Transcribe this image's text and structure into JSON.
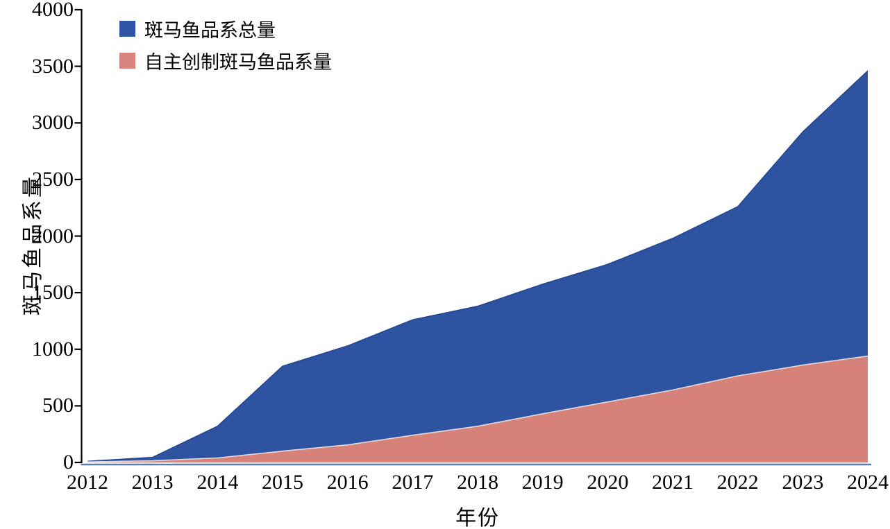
{
  "figure": {
    "y_axis_title": "斑马鱼品系量",
    "x_axis_title": "年份"
  },
  "legend": {
    "position": "top-left",
    "items": [
      {
        "label": "斑马鱼品系总量",
        "color": "#2f55a4"
      },
      {
        "label": "自主创制斑马鱼品系量",
        "color": "#d9837e"
      }
    ]
  },
  "chart_data": {
    "type": "area",
    "title": "",
    "xlabel": "年份",
    "ylabel": "斑马鱼品系量",
    "categories": [
      "2012",
      "2013",
      "2014",
      "2015",
      "2016",
      "2017",
      "2018",
      "2019",
      "2020",
      "2021",
      "2022",
      "2023",
      "2024"
    ],
    "series": [
      {
        "name": "斑马鱼品系总量",
        "fill": "#2e54a1",
        "edge": "#24468c",
        "values": [
          10,
          45,
          320,
          850,
          1030,
          1260,
          1380,
          1575,
          1750,
          1980,
          2260,
          2920,
          3460
        ]
      },
      {
        "name": "自主创制斑马鱼品系量",
        "fill": "#d6817a",
        "edge": "#e0dce2",
        "values": [
          5,
          15,
          40,
          100,
          155,
          240,
          320,
          430,
          535,
          640,
          765,
          860,
          940
        ]
      }
    ],
    "mode": "overlap",
    "ylim": [
      0,
      4000
    ],
    "yticks": [
      0,
      500,
      1000,
      1500,
      2000,
      2500,
      3000,
      3500,
      4000
    ],
    "grid": false,
    "legend_position": "top-left",
    "axis_colors": {
      "y_axis": "#000000",
      "x_axis": "#5b7ca8"
    }
  }
}
